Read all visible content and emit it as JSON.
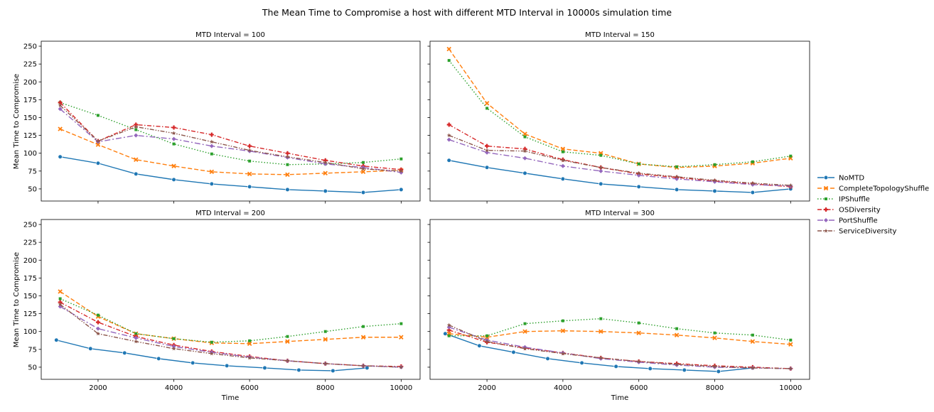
{
  "chart_data": {
    "type": "line",
    "title": "The Mean Time to Compromise a host with different MTD Interval in 10000s simulation time",
    "xlabel": "Time",
    "ylabel": "Mean Time to Compromise",
    "xlim": [
      500,
      10500
    ],
    "ylim": [
      33,
      257
    ],
    "xticks": [
      2000,
      4000,
      6000,
      8000,
      10000
    ],
    "yticks": [
      50,
      75,
      100,
      125,
      150,
      175,
      200,
      225,
      250
    ],
    "grid": false,
    "legend_position": "right",
    "legend": [
      {
        "name": "NoMTD",
        "color": "#1f77b4",
        "dash": "",
        "marker": "circle"
      },
      {
        "name": "CompleteTopologyShuffle",
        "color": "#ff7f0e",
        "dash": "6,3",
        "marker": "x"
      },
      {
        "name": "IPShuffle",
        "color": "#2ca02c",
        "dash": "1.5,2.5",
        "marker": "square"
      },
      {
        "name": "OSDiversity",
        "color": "#d62728",
        "dash": "6,2.5,1.5,2.5",
        "marker": "plus"
      },
      {
        "name": "PortShuffle",
        "color": "#9467bd",
        "dash": "8,3,2,3",
        "marker": "diamond"
      },
      {
        "name": "ServiceDiversity",
        "color": "#8c564b",
        "dash": "6,2,1.5,2,1.5,2",
        "marker": "star"
      }
    ],
    "panels": [
      {
        "title": "MTD Interval = 100",
        "series": [
          {
            "name": "NoMTD",
            "x": [
              1000,
              2000,
              3000,
              4000,
              5000,
              6000,
              7000,
              8000,
              9000,
              10000
            ],
            "y": [
              95,
              86,
              71,
              63,
              57,
              53,
              49,
              47,
              45,
              49
            ]
          },
          {
            "name": "CompleteTopologyShuffle",
            "x": [
              1000,
              2000,
              3000,
              4000,
              5000,
              6000,
              7000,
              8000,
              9000,
              10000
            ],
            "y": [
              134,
              112,
              91,
              82,
              74,
              71,
              70,
              72,
              74,
              76
            ]
          },
          {
            "name": "IPShuffle",
            "x": [
              1000,
              2000,
              3000,
              4000,
              5000,
              6000,
              7000,
              8000,
              9000,
              10000
            ],
            "y": [
              171,
              153,
              133,
              113,
              99,
              89,
              84,
              85,
              87,
              92
            ]
          },
          {
            "name": "OSDiversity",
            "x": [
              1000,
              2000,
              3000,
              4000,
              5000,
              6000,
              7000,
              8000,
              9000,
              10000
            ],
            "y": [
              171,
              117,
              140,
              136,
              126,
              110,
              100,
              90,
              82,
              77
            ]
          },
          {
            "name": "PortShuffle",
            "x": [
              1000,
              2000,
              3000,
              4000,
              5000,
              6000,
              7000,
              8000,
              9000,
              10000
            ],
            "y": [
              162,
              116,
              125,
              120,
              110,
              103,
              94,
              85,
              80,
              73
            ]
          },
          {
            "name": "ServiceDiversity",
            "x": [
              1000,
              2000,
              3000,
              4000,
              5000,
              6000,
              7000,
              8000,
              9000,
              10000
            ],
            "y": [
              167,
              117,
              137,
              128,
              116,
              104,
              95,
              87,
              78,
              75
            ]
          }
        ]
      },
      {
        "title": "MTD Interval = 150",
        "series": [
          {
            "name": "NoMTD",
            "x": [
              1000,
              2000,
              3000,
              4000,
              5000,
              6000,
              7000,
              8000,
              9000,
              10000
            ],
            "y": [
              90,
              80,
              72,
              64,
              57,
              53,
              49,
              47,
              45,
              50
            ]
          },
          {
            "name": "CompleteTopologyShuffle",
            "x": [
              1000,
              2000,
              3000,
              4000,
              5000,
              6000,
              7000,
              8000,
              9000,
              10000
            ],
            "y": [
              246,
              170,
              127,
              106,
              100,
              85,
              80,
              82,
              86,
              93
            ]
          },
          {
            "name": "IPShuffle",
            "x": [
              1000,
              2000,
              3000,
              4000,
              5000,
              6000,
              7000,
              8000,
              9000,
              10000
            ],
            "y": [
              230,
              163,
              123,
              102,
              97,
              85,
              81,
              84,
              88,
              96
            ]
          },
          {
            "name": "OSDiversity",
            "x": [
              1000,
              2000,
              3000,
              4000,
              5000,
              6000,
              7000,
              8000,
              9000,
              10000
            ],
            "y": [
              140,
              110,
              106,
              91,
              80,
              71,
              66,
              61,
              57,
              53
            ]
          },
          {
            "name": "PortShuffle",
            "x": [
              1000,
              2000,
              3000,
              4000,
              5000,
              6000,
              7000,
              8000,
              9000,
              10000
            ],
            "y": [
              119,
              101,
              93,
              82,
              75,
              69,
              64,
              60,
              56,
              54
            ]
          },
          {
            "name": "ServiceDiversity",
            "x": [
              1000,
              2000,
              3000,
              4000,
              5000,
              6000,
              7000,
              8000,
              9000,
              10000
            ],
            "y": [
              125,
              104,
              103,
              90,
              80,
              72,
              67,
              62,
              58,
              55
            ]
          }
        ]
      },
      {
        "title": "MTD Interval = 200",
        "series": [
          {
            "name": "NoMTD",
            "x": [
              900,
              1800,
              2700,
              3600,
              4500,
              5400,
              6400,
              7300,
              8200,
              9100
            ],
            "y": [
              88,
              76,
              70,
              62,
              56,
              52,
              49,
              46,
              45,
              49
            ]
          },
          {
            "name": "CompleteTopologyShuffle",
            "x": [
              1000,
              2000,
              3000,
              4000,
              5000,
              6000,
              7000,
              8000,
              9000,
              10000
            ],
            "y": [
              156,
              121,
              97,
              90,
              84,
              83,
              86,
              89,
              92,
              92
            ]
          },
          {
            "name": "IPShuffle",
            "x": [
              1000,
              2000,
              3000,
              4000,
              5000,
              6000,
              7000,
              8000,
              9000,
              10000
            ],
            "y": [
              146,
              123,
              97,
              90,
              85,
              87,
              93,
              100,
              107,
              111
            ]
          },
          {
            "name": "OSDiversity",
            "x": [
              1000,
              2000,
              3000,
              4000,
              5000,
              6000,
              7000,
              8000,
              9000,
              10000
            ],
            "y": [
              141,
              113,
              93,
              81,
              72,
              65,
              59,
              55,
              52,
              51
            ]
          },
          {
            "name": "PortShuffle",
            "x": [
              1000,
              2000,
              3000,
              4000,
              5000,
              6000,
              7000,
              8000,
              9000,
              10000
            ],
            "y": [
              135,
              104,
              91,
              79,
              71,
              64,
              59,
              55,
              52,
              50
            ]
          },
          {
            "name": "ServiceDiversity",
            "x": [
              1000,
              2000,
              3000,
              4000,
              5000,
              6000,
              7000,
              8000,
              9000,
              10000
            ],
            "y": [
              138,
              97,
              86,
              76,
              69,
              63,
              59,
              55,
              52,
              50
            ]
          }
        ]
      },
      {
        "title": "MTD Interval = 300",
        "series": [
          {
            "name": "NoMTD",
            "x": [
              900,
              1800,
              2700,
              3600,
              4500,
              5400,
              6300,
              7200,
              8100,
              9000
            ],
            "y": [
              97,
              80,
              71,
              62,
              56,
              51,
              48,
              46,
              44,
              49
            ]
          },
          {
            "name": "CompleteTopologyShuffle",
            "x": [
              1000,
              2000,
              3000,
              4000,
              5000,
              6000,
              7000,
              8000,
              9000,
              10000
            ],
            "y": [
              97,
              92,
              100,
              101,
              100,
              98,
              95,
              91,
              86,
              82
            ]
          },
          {
            "name": "IPShuffle",
            "x": [
              1000,
              2000,
              3000,
              4000,
              5000,
              6000,
              7000,
              8000,
              9000,
              10000
            ],
            "y": [
              94,
              94,
              111,
              115,
              118,
              112,
              104,
              98,
              95,
              88
            ]
          },
          {
            "name": "OSDiversity",
            "x": [
              1000,
              2000,
              3000,
              4000,
              5000,
              6000,
              7000,
              8000,
              9000,
              10000
            ],
            "y": [
              102,
              85,
              77,
              70,
              63,
              58,
              55,
              52,
              50,
              48
            ]
          },
          {
            "name": "PortShuffle",
            "x": [
              1000,
              2000,
              3000,
              4000,
              5000,
              6000,
              7000,
              8000,
              9000,
              10000
            ],
            "y": [
              106,
              88,
              78,
              70,
              62,
              57,
              53,
              50,
              49,
              48
            ]
          },
          {
            "name": "ServiceDiversity",
            "x": [
              1000,
              2000,
              3000,
              4000,
              5000,
              6000,
              7000,
              8000,
              9000,
              10000
            ],
            "y": [
              109,
              86,
              76,
              69,
              63,
              58,
              54,
              51,
              49,
              48
            ]
          }
        ]
      }
    ]
  }
}
